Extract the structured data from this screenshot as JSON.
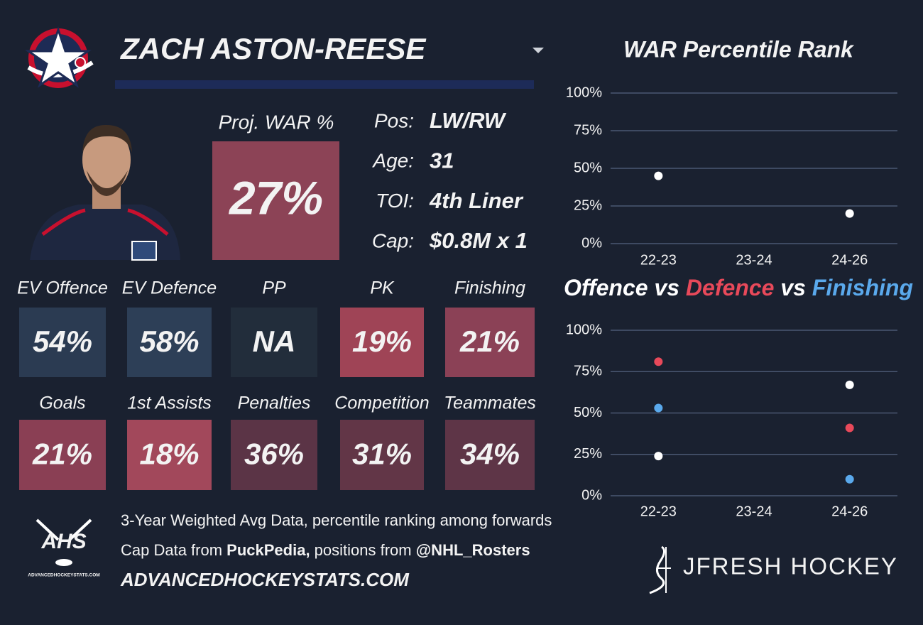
{
  "header": {
    "player": "ZACH ASTON-REESE"
  },
  "projection": {
    "label": "Proj. WAR %",
    "value": "27%",
    "color": "#8c4356"
  },
  "info": [
    {
      "label": "Pos:",
      "value": "LW/RW"
    },
    {
      "label": "Age:",
      "value": "31"
    },
    {
      "label": "TOI:",
      "value": "4th Liner"
    },
    {
      "label": "Cap:",
      "value": "$0.8M x 1"
    }
  ],
  "tiles": [
    {
      "label": "EV Offence",
      "value": "54%",
      "color": "#2b3b52"
    },
    {
      "label": "EV Defence",
      "value": "58%",
      "color": "#2d3f57"
    },
    {
      "label": "PP",
      "value": "NA",
      "color": "#222d3b"
    },
    {
      "label": "PK",
      "value": "19%",
      "color": "#9f4456"
    },
    {
      "label": "Finishing",
      "value": "21%",
      "color": "#8b4156"
    },
    {
      "label": "Goals",
      "value": "21%",
      "color": "#8a3f54"
    },
    {
      "label": "1st Assists",
      "value": "18%",
      "color": "#a2485b"
    },
    {
      "label": "Penalties",
      "value": "36%",
      "color": "#5b3446"
    },
    {
      "label": "Competition",
      "value": "31%",
      "color": "#623647"
    },
    {
      "label": "Teammates",
      "value": "34%",
      "color": "#5e3547"
    }
  ],
  "footer": {
    "note": "3-Year Weighted Avg Data, percentile ranking among forwards",
    "cap_prefix": "Cap Data from ",
    "cap_source": "PuckPedia,",
    "pos_prefix": " positions from ",
    "pos_source": "@NHL_Rosters",
    "site": "ADVANCEDHOCKEYSTATS.COM",
    "logo_text": "AHS",
    "logo_small": "ADVANCEDHOCKEYSTATS.COM",
    "brand": "JFRESH HOCKEY"
  },
  "chart_data": [
    {
      "type": "scatter",
      "title": "WAR Percentile Rank",
      "categories": [
        "22-23",
        "23-24",
        "24-26"
      ],
      "series": [
        {
          "color": "#ffffff",
          "values": [
            45,
            null,
            20
          ]
        }
      ],
      "ylim": [
        0,
        100
      ],
      "yticks": [
        {
          "value": 0,
          "label": "0%"
        },
        {
          "value": 25,
          "label": "25%"
        },
        {
          "value": 50,
          "label": "50%"
        },
        {
          "value": 75,
          "label": "75%"
        },
        {
          "value": 100,
          "label": "100%"
        }
      ],
      "grid": true
    },
    {
      "type": "scatter",
      "title_joiner": "vs",
      "categories": [
        "22-23",
        "23-24",
        "24-26"
      ],
      "series": [
        {
          "name": "Offence",
          "color": "#ffffff",
          "values": [
            24,
            null,
            67
          ]
        },
        {
          "name": "Defence",
          "color": "#e8495a",
          "values": [
            81,
            null,
            41
          ]
        },
        {
          "name": "Finishing",
          "color": "#5aa9ec",
          "values": [
            53,
            null,
            10
          ]
        }
      ],
      "ylim": [
        0,
        100
      ],
      "yticks": [
        {
          "value": 0,
          "label": "0%"
        },
        {
          "value": 25,
          "label": "25%"
        },
        {
          "value": 50,
          "label": "50%"
        },
        {
          "value": 75,
          "label": "75%"
        },
        {
          "value": 100,
          "label": "100%"
        }
      ],
      "grid": true
    }
  ]
}
